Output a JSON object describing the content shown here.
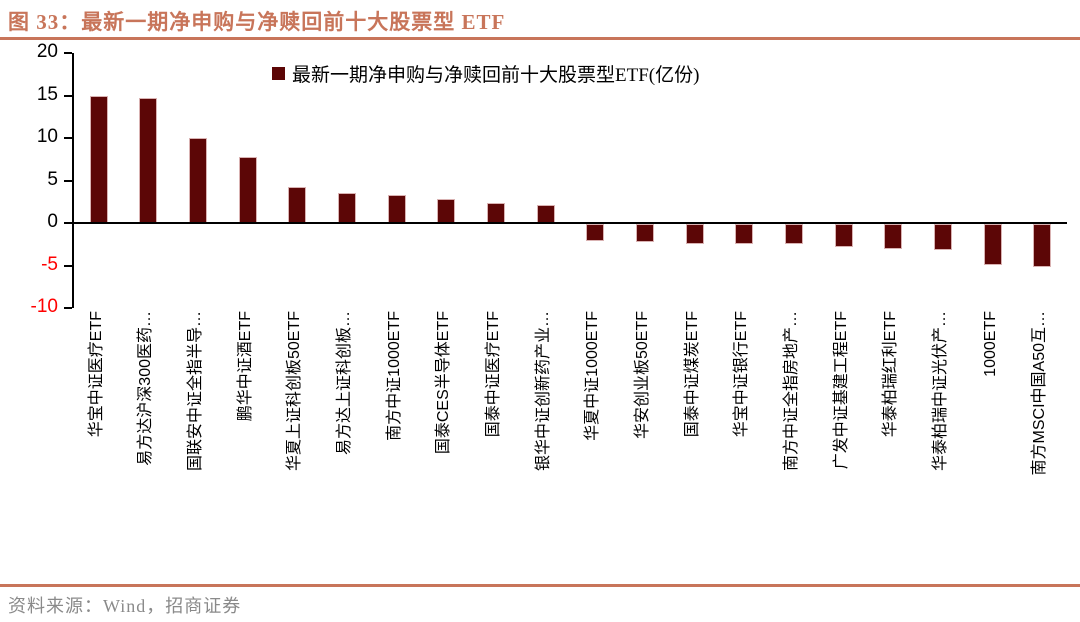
{
  "title": "图 33：最新一期净申购与净赎回前十大股票型 ETF",
  "source": "资料来源：Wind，招商证券",
  "colors": {
    "accent_rule": "#C8755A",
    "title_text": "#C8755A",
    "bar_fill": "#5C0606",
    "bar_edge": "#D9B2B2",
    "axis": "#000000",
    "positive_tick_text": "#000000",
    "negative_tick_text": "#FF0000",
    "source_text": "#8A8A8A"
  },
  "chart_data": {
    "type": "bar",
    "title": "最新一期净申购与净赎回前十大股票型ETF(亿份)",
    "legend_label": "最新一期净申购与净赎回前十大股票型ETF(亿份)",
    "legend_position": "top-center",
    "grid": false,
    "xlabel": "",
    "ylabel": "",
    "ylim": [
      -10,
      20
    ],
    "yticks": [
      20,
      15,
      10,
      5,
      0,
      -5,
      -10
    ],
    "categories": [
      "华宝中证医疗ETF",
      "易方达沪深300医药…",
      "国联安中证全指半导…",
      "鹏华中证酒ETF",
      "华夏上证科创板50ETF",
      "易方达上证科创板…",
      "南方中证1000ETF",
      "国泰CES半导体ETF",
      "国泰中证医疗ETF",
      "银华中证创新药产业…",
      "华夏中证1000ETF",
      "华安创业板50ETF",
      "国泰中证煤炭ETF",
      "华宝中证银行ETF",
      "南方中证全指房地产…",
      "广发中证基建工程ETF",
      "华泰柏瑞红利ETF",
      "华泰柏瑞中证光伏产…",
      "1000ETF",
      "南方MSCI中国A50互…"
    ],
    "values": [
      15.0,
      14.7,
      10.0,
      7.8,
      4.2,
      3.5,
      3.3,
      2.8,
      2.4,
      2.1,
      -2.0,
      -2.1,
      -2.3,
      -2.3,
      -2.4,
      -2.7,
      -2.9,
      -3.1,
      -4.8,
      -5.0
    ]
  }
}
